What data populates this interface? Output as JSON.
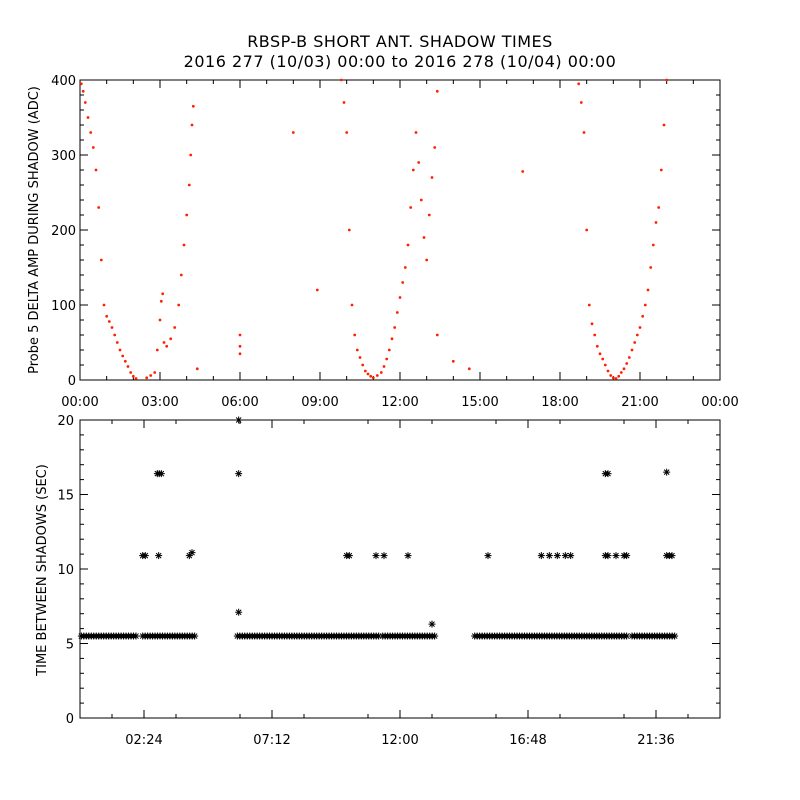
{
  "title": "RBSP-B SHORT ANT. SHADOW TIMES",
  "subtitle": "2016 277 (10/03) 00:00 to 2016 278 (10/04) 00:00",
  "colors": {
    "points_top": "#ff2200",
    "points_bottom": "#000000",
    "axes": "#000000"
  },
  "chart_data": [
    {
      "type": "scatter",
      "ylabel": "Probe 5 DELTA AMP DURING SHADOW (ADC)",
      "xlabel": "",
      "x_unit": "hours",
      "xlim": [
        0,
        24
      ],
      "ylim": [
        0,
        400
      ],
      "x_tick_labels": [
        "00:00",
        "03:00",
        "06:00",
        "09:00",
        "12:00",
        "15:00",
        "18:00",
        "21:00",
        "00:00"
      ],
      "y_tick_labels": [
        "0",
        "100",
        "200",
        "300",
        "400"
      ],
      "marker": "dot",
      "series": [
        {
          "points": [
            [
              0.05,
              395
            ],
            [
              0.12,
              385
            ],
            [
              0.2,
              370
            ],
            [
              0.3,
              350
            ],
            [
              0.4,
              330
            ],
            [
              0.5,
              310
            ],
            [
              0.6,
              280
            ],
            [
              0.7,
              230
            ],
            [
              0.8,
              160
            ],
            [
              0.9,
              100
            ],
            [
              1.0,
              85
            ],
            [
              1.1,
              78
            ],
            [
              1.2,
              70
            ],
            [
              1.3,
              60
            ],
            [
              1.4,
              50
            ],
            [
              1.5,
              40
            ],
            [
              1.6,
              32
            ],
            [
              1.7,
              25
            ],
            [
              1.8,
              18
            ],
            [
              1.9,
              10
            ],
            [
              2.0,
              5
            ],
            [
              2.1,
              2
            ],
            [
              2.5,
              3
            ],
            [
              2.65,
              6
            ],
            [
              2.8,
              10
            ],
            [
              2.9,
              40
            ],
            [
              3.0,
              80
            ],
            [
              3.05,
              105
            ],
            [
              3.1,
              115
            ],
            [
              3.15,
              50
            ],
            [
              3.25,
              45
            ],
            [
              3.4,
              55
            ],
            [
              3.55,
              70
            ],
            [
              3.7,
              100
            ],
            [
              3.8,
              140
            ],
            [
              3.9,
              180
            ],
            [
              4.0,
              220
            ],
            [
              4.1,
              260
            ],
            [
              4.15,
              300
            ],
            [
              4.2,
              340
            ],
            [
              4.25,
              365
            ],
            [
              4.4,
              15
            ],
            [
              6.0,
              35
            ],
            [
              6.0,
              45
            ],
            [
              6.0,
              60
            ],
            [
              8.0,
              330
            ],
            [
              8.9,
              120
            ],
            [
              9.8,
              400
            ],
            [
              9.9,
              370
            ],
            [
              10.0,
              330
            ],
            [
              10.1,
              200
            ],
            [
              10.2,
              100
            ],
            [
              10.3,
              60
            ],
            [
              10.4,
              40
            ],
            [
              10.5,
              30
            ],
            [
              10.6,
              20
            ],
            [
              10.7,
              12
            ],
            [
              10.8,
              8
            ],
            [
              10.9,
              5
            ],
            [
              11.0,
              3
            ],
            [
              11.15,
              6
            ],
            [
              11.3,
              10
            ],
            [
              11.4,
              18
            ],
            [
              11.5,
              28
            ],
            [
              11.6,
              40
            ],
            [
              11.7,
              55
            ],
            [
              11.8,
              70
            ],
            [
              11.9,
              90
            ],
            [
              12.0,
              110
            ],
            [
              12.1,
              130
            ],
            [
              12.2,
              150
            ],
            [
              12.3,
              180
            ],
            [
              12.4,
              230
            ],
            [
              12.5,
              280
            ],
            [
              12.6,
              330
            ],
            [
              12.7,
              290
            ],
            [
              12.8,
              240
            ],
            [
              12.9,
              190
            ],
            [
              13.0,
              160
            ],
            [
              13.1,
              220
            ],
            [
              13.2,
              270
            ],
            [
              13.3,
              310
            ],
            [
              13.4,
              60
            ],
            [
              13.4,
              385
            ],
            [
              14.0,
              25
            ],
            [
              14.6,
              15
            ],
            [
              16.6,
              278
            ],
            [
              18.7,
              395
            ],
            [
              18.8,
              370
            ],
            [
              18.9,
              330
            ],
            [
              19.0,
              200
            ],
            [
              19.1,
              100
            ],
            [
              19.2,
              75
            ],
            [
              19.3,
              60
            ],
            [
              19.4,
              45
            ],
            [
              19.5,
              35
            ],
            [
              19.6,
              28
            ],
            [
              19.7,
              20
            ],
            [
              19.8,
              12
            ],
            [
              19.9,
              6
            ],
            [
              20.0,
              3
            ],
            [
              20.1,
              2
            ],
            [
              20.2,
              5
            ],
            [
              20.3,
              10
            ],
            [
              20.4,
              15
            ],
            [
              20.5,
              22
            ],
            [
              20.6,
              30
            ],
            [
              20.7,
              40
            ],
            [
              20.8,
              50
            ],
            [
              20.9,
              60
            ],
            [
              21.0,
              70
            ],
            [
              21.1,
              85
            ],
            [
              21.2,
              100
            ],
            [
              21.3,
              120
            ],
            [
              21.4,
              150
            ],
            [
              21.5,
              180
            ],
            [
              21.6,
              210
            ],
            [
              21.7,
              230
            ],
            [
              21.8,
              280
            ],
            [
              21.9,
              340
            ],
            [
              22.0,
              400
            ]
          ]
        }
      ]
    },
    {
      "type": "scatter",
      "ylabel": "TIME BETWEEN SHADOWS (SEC)",
      "xlabel": "",
      "x_unit": "hours",
      "xlim": [
        0,
        24
      ],
      "ylim": [
        0,
        20
      ],
      "x_tick_labels": [
        "02:24",
        "07:12",
        "12:00",
        "16:48",
        "21:36"
      ],
      "x_tick_values": [
        2.4,
        7.2,
        12.0,
        16.8,
        21.6
      ],
      "y_tick_labels": [
        "0",
        "5",
        "10",
        "15",
        "20"
      ],
      "marker": "asterisk",
      "series": [
        {
          "runs": [
            {
              "from": 0.05,
              "to": 2.1,
              "y": 5.5
            },
            {
              "from": 2.35,
              "to": 4.3,
              "y": 5.5
            },
            {
              "from": 5.9,
              "to": 11.2,
              "y": 5.5
            },
            {
              "from": 11.35,
              "to": 13.3,
              "y": 5.5
            },
            {
              "from": 14.8,
              "to": 20.5,
              "y": 5.5
            },
            {
              "from": 20.7,
              "to": 22.3,
              "y": 5.5
            }
          ],
          "points": [
            [
              2.35,
              10.9
            ],
            [
              2.45,
              10.9
            ],
            [
              2.9,
              16.4
            ],
            [
              2.97,
              16.4
            ],
            [
              3.05,
              16.4
            ],
            [
              2.95,
              10.9
            ],
            [
              4.1,
              10.9
            ],
            [
              4.2,
              11.1
            ],
            [
              5.95,
              20.0
            ],
            [
              5.95,
              16.4
            ],
            [
              5.95,
              7.1
            ],
            [
              10.0,
              10.9
            ],
            [
              10.1,
              10.9
            ],
            [
              11.1,
              10.9
            ],
            [
              11.4,
              10.9
            ],
            [
              12.3,
              10.9
            ],
            [
              13.2,
              6.3
            ],
            [
              15.3,
              10.9
            ],
            [
              17.3,
              10.9
            ],
            [
              17.6,
              10.9
            ],
            [
              17.9,
              10.9
            ],
            [
              18.2,
              10.9
            ],
            [
              18.4,
              10.9
            ],
            [
              19.7,
              16.4
            ],
            [
              19.8,
              16.4
            ],
            [
              19.7,
              10.9
            ],
            [
              19.8,
              10.9
            ],
            [
              20.1,
              10.9
            ],
            [
              20.4,
              10.9
            ],
            [
              20.5,
              10.9
            ],
            [
              22.0,
              16.5
            ],
            [
              22.0,
              10.9
            ],
            [
              22.1,
              10.9
            ],
            [
              22.2,
              10.9
            ]
          ]
        }
      ]
    }
  ]
}
